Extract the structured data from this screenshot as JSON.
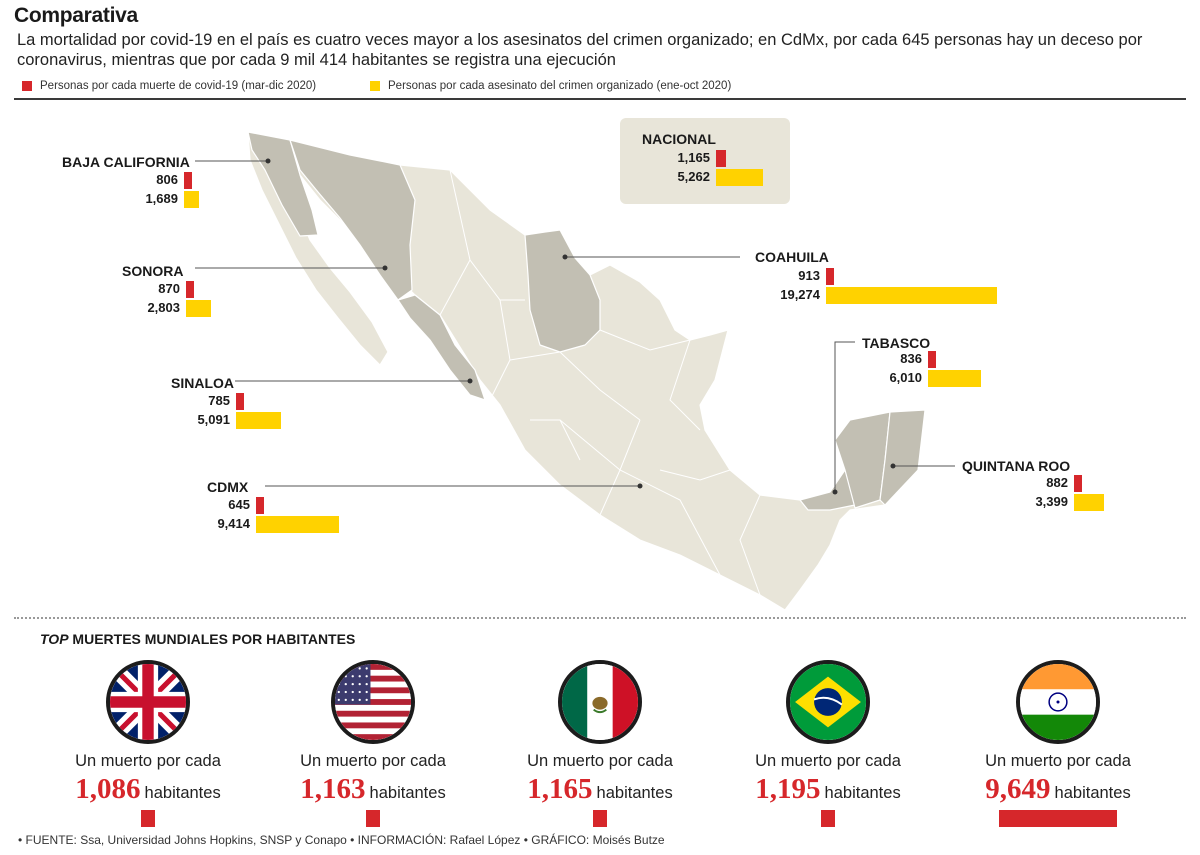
{
  "title": "Comparativa",
  "subtitle": "La mortalidad por covid-19 en el país es cuatro veces mayor a los asesinatos del crimen organizado; en CdMx, por cada 645 personas hay un deceso por coronavirus, mientras que por cada 9 mil 414 habitantes se registra una ejecución",
  "legend": {
    "covid": "Personas por cada muerte de covid-19 (mar-dic 2020)",
    "crimen": "Personas por cada asesinato del crimen organizado (ene-oct 2020)"
  },
  "colors": {
    "covid": "#d6272b",
    "crimen": "#ffd200",
    "map_land": "#e8e5d9",
    "map_highlight": "#c2bfb3"
  },
  "chart_data": [
    {
      "type": "bar",
      "categories": [
        "NACIONAL",
        "BAJA CALIFORNIA",
        "SONORA",
        "SINALOA",
        "CDMX",
        "COAHUILA",
        "TABASCO",
        "QUINTANA ROO"
      ],
      "series": [
        {
          "name": "Personas por cada muerte de covid-19 (mar-dic 2020)",
          "values": [
            1165,
            806,
            870,
            785,
            645,
            913,
            836,
            882
          ]
        },
        {
          "name": "Personas por cada asesinato del crimen organizado (ene-oct 2020)",
          "values": [
            5262,
            1689,
            2803,
            5091,
            9414,
            19274,
            6010,
            3399
          ]
        }
      ],
      "labels": {
        "covid": [
          "1,165",
          "806",
          "870",
          "785",
          "645",
          "913",
          "836",
          "882"
        ],
        "crimen": [
          "5,262",
          "1,689",
          "2,803",
          "5,091",
          "9,414",
          "19,274",
          "6,010",
          "3,399"
        ]
      }
    },
    {
      "type": "bar",
      "title_prefix": "TOP",
      "title": "MUERTES MUNDIALES POR HABITANTES",
      "line1": "Un muerto por cada",
      "unit": "habitantes",
      "categories": [
        "Reino Unido",
        "Estados Unidos",
        "México",
        "Brasil",
        "India"
      ],
      "values": [
        1086,
        1163,
        1165,
        1195,
        9649
      ],
      "labels": [
        "1,086",
        "1,163",
        "1,165",
        "1,195",
        "9,649"
      ]
    }
  ],
  "flags": [
    "uk-flag-icon",
    "usa-flag-icon",
    "mexico-flag-icon",
    "brazil-flag-icon",
    "india-flag-icon"
  ],
  "source": "• FUENTE: Ssa, Universidad Johns Hopkins, SNSP y Conapo • INFORMACIÓN: Rafael López • GRÁFICO: Moisés Butze"
}
